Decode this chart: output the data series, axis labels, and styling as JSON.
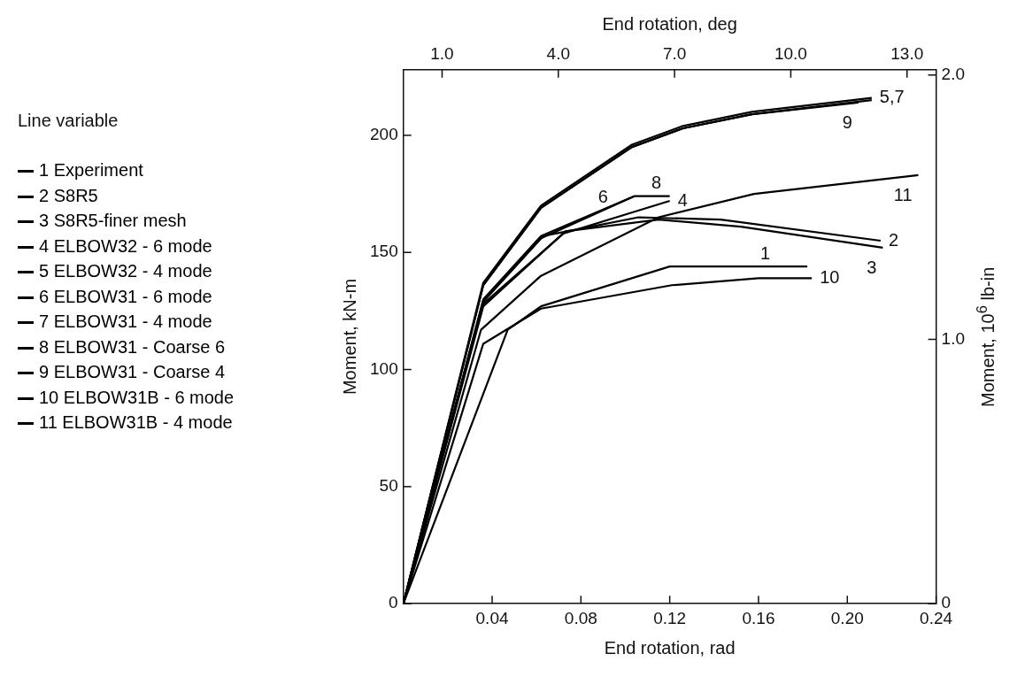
{
  "chart_data": {
    "type": "line",
    "xlabel": "End rotation, rad",
    "ylabel": "Moment, kN-m",
    "y2label": "Moment, 10$^{6}$ lb-in",
    "x2label": "End rotation, deg",
    "legend_title": "Line variable",
    "legend": "left",
    "grid": false,
    "marker": "none",
    "line_style": "solid",
    "xlim": [
      0,
      0.24
    ],
    "xticks": [
      {
        "value": 0.04,
        "label": "0.04"
      },
      {
        "value": 0.08,
        "label": "0.08"
      },
      {
        "value": 0.12,
        "label": "0.12"
      },
      {
        "value": 0.16,
        "label": "0.16"
      },
      {
        "value": 0.2,
        "label": "0.20"
      },
      {
        "value": 0.24,
        "label": "0.24"
      }
    ],
    "x2lim": [
      0,
      13.75
    ],
    "x2ticks": [
      {
        "value": 1,
        "label": "1.0"
      },
      {
        "value": 4,
        "label": "4.0"
      },
      {
        "value": 7,
        "label": "7.0"
      },
      {
        "value": 10,
        "label": "10.0"
      },
      {
        "value": 13,
        "label": "13.0"
      }
    ],
    "ylim": [
      0,
      228
    ],
    "yticks": [
      0,
      50,
      100,
      150,
      200
    ],
    "y2lim": [
      0,
      2.02
    ],
    "y2ticks": [
      0,
      {
        "value": 1,
        "label": "1.0"
      },
      {
        "value": 2,
        "label": "2.0"
      }
    ],
    "series": [
      {
        "name": "1 Experiment",
        "color": "#000000",
        "x": [
          0,
          0.047,
          0.062,
          0.12,
          0.182
        ],
        "values": [
          0,
          117,
          127,
          144,
          144
        ]
      },
      {
        "name": "2 S8R5",
        "color": "#000000",
        "x": [
          0,
          0.036,
          0.063,
          0.106,
          0.143,
          0.215
        ],
        "values": [
          0,
          129,
          157,
          165,
          164,
          155
        ]
      },
      {
        "name": "3 S8R5-finer mesh",
        "color": "#000000",
        "x": [
          0,
          0.036,
          0.073,
          0.115,
          0.152,
          0.216
        ],
        "values": [
          0,
          127,
          159,
          164,
          161,
          152
        ]
      },
      {
        "name": "4 ELBOW32 - 6 mode",
        "color": "#000000",
        "x": [
          0,
          0.036,
          0.072,
          0.12
        ],
        "values": [
          0,
          128,
          158,
          172
        ]
      },
      {
        "name": "5 ELBOW32 - 4 mode",
        "color": "#000000",
        "x": [
          0,
          0.036,
          0.062,
          0.103,
          0.126,
          0.157,
          0.211
        ],
        "values": [
          0,
          137,
          170,
          196,
          204,
          210,
          216
        ]
      },
      {
        "name": "6 ELBOW31 - 6 mode",
        "color": "#000000",
        "x": [
          0,
          0.036,
          0.062,
          0.104
        ],
        "values": [
          0,
          129,
          156,
          174
        ]
      },
      {
        "name": "7 ELBOW31 - 4 mode",
        "color": "#000000",
        "x": [
          0,
          0.036,
          0.062,
          0.103,
          0.126,
          0.157,
          0.211
        ],
        "values": [
          0,
          136,
          169,
          195,
          203,
          209,
          215
        ]
      },
      {
        "name": "8 ELBOW31 - Coarse 6",
        "color": "#000000",
        "x": [
          0,
          0.036,
          0.062,
          0.104,
          0.12
        ],
        "values": [
          0,
          130,
          157,
          174,
          174
        ]
      },
      {
        "name": "9 ELBOW31 - Coarse 4",
        "color": "#000000",
        "x": [
          0,
          0.036,
          0.062,
          0.103,
          0.126,
          0.157,
          0.205
        ],
        "values": [
          0,
          136,
          169,
          195,
          203,
          209,
          214
        ]
      },
      {
        "name": "10 ELBOW31B - 6 mode",
        "color": "#000000",
        "x": [
          0,
          0.036,
          0.062,
          0.121,
          0.16,
          0.184
        ],
        "values": [
          0,
          111,
          126,
          136,
          139,
          139
        ]
      },
      {
        "name": "11 ELBOW31B - 4 mode",
        "color": "#000000",
        "x": [
          0,
          0.035,
          0.062,
          0.115,
          0.158,
          0.232
        ],
        "values": [
          0,
          117,
          140,
          165,
          175,
          183
        ]
      }
    ],
    "annotations": [
      {
        "text": "5,7",
        "x": 0.211,
        "y": 216
      },
      {
        "text": "9",
        "x": 0.205,
        "y": 214
      },
      {
        "text": "6",
        "x": 0.09,
        "y": 168
      },
      {
        "text": "8",
        "x": 0.114,
        "y": 174
      },
      {
        "text": "4",
        "x": 0.12,
        "y": 172
      },
      {
        "text": "11",
        "x": 0.232,
        "y": 183
      },
      {
        "text": "2",
        "x": 0.215,
        "y": 155
      },
      {
        "text": "3",
        "x": 0.216,
        "y": 152
      },
      {
        "text": "1",
        "x": 0.163,
        "y": 144
      },
      {
        "text": "10",
        "x": 0.184,
        "y": 139
      }
    ]
  }
}
